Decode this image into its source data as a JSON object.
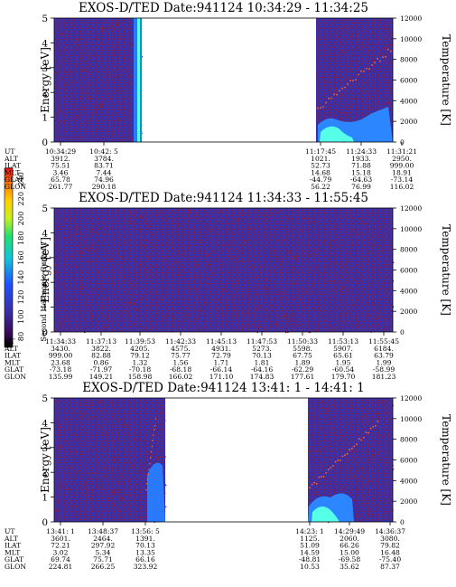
{
  "colors": {
    "background": "#3b2fa6",
    "noise": "#8a1e3a",
    "trace": "#f06a3a",
    "cyan": "#55ffe8",
    "blue": "#2a7aff"
  },
  "colorbar": {
    "label": "Second Harmonic Current",
    "ticks": [
      "240",
      "220",
      "200",
      "180",
      "160",
      "140",
      "120",
      "100",
      "80"
    ]
  },
  "chart_data": [
    {
      "type": "heatmap",
      "title": "EXOS-D/TED   Date:941124  10:34:29 - 11:34:25",
      "ylabel": "Energy [eV]",
      "ylabel_right": "Temperature [K]",
      "ylim": [
        0,
        5
      ],
      "ylim_right": [
        0,
        12000
      ],
      "yticks": [
        "0",
        "1",
        "2",
        "3",
        "4",
        "5"
      ],
      "yticks_right": [
        "0",
        "2000",
        "4000",
        "6000",
        "8000",
        "10000",
        "12000"
      ],
      "row_labels": [
        "UT",
        "ALT",
        "ILAT",
        "MLT",
        "GLAT",
        "GLON"
      ],
      "columns": [
        [
          "10:34:29",
          "3912.",
          "75.51",
          "3.46",
          "65.78",
          "261.77"
        ],
        [
          "10:42: 5",
          "3784.",
          "83.71",
          "7.44",
          "74.96",
          "290.18"
        ],
        [
          "11:17:45",
          "1021.",
          "52.73",
          "14.68",
          "-44.79",
          "56.22"
        ],
        [
          "11:24:33",
          "1933.",
          "71.88",
          "15.18",
          "-64.63",
          "76.99"
        ],
        [
          "11:31:21",
          "2950.",
          "999.00",
          "18.91",
          "-73.14",
          "116.02"
        ]
      ]
    },
    {
      "type": "heatmap",
      "title": "EXOS-D/TED   Date:941124  11:34:33 - 11:55:45",
      "ylabel": "Energy [eV]",
      "ylabel_right": "Temperature [K]",
      "ylim": [
        0,
        5
      ],
      "ylim_right": [
        0,
        12000
      ],
      "yticks": [
        "0",
        "1",
        "2",
        "3",
        "4",
        "5"
      ],
      "yticks_right": [
        "0",
        "2000",
        "4000",
        "6000",
        "8000",
        "10000",
        "12000"
      ],
      "row_labels": [
        "UT",
        "ALT",
        "ILAT",
        "MLT",
        "GLAT",
        "GLON"
      ],
      "columns": [
        [
          "11:34:33",
          "3430.",
          "999.00",
          "23.68",
          "-73.18",
          "135.99"
        ],
        [
          "11:37:13",
          "3822.",
          "82.88",
          "0.86",
          "-71.97",
          "149.21"
        ],
        [
          "11:39:53",
          "4205.",
          "79.12",
          "1.32",
          "-70.18",
          "158.98"
        ],
        [
          "11:42:33",
          "4575.",
          "75.77",
          "1.56",
          "-68.18",
          "166.02"
        ],
        [
          "11:45:13",
          "4931.",
          "72.79",
          "1.71",
          "-66.14",
          "171.10"
        ],
        [
          "11:47:53",
          "5273.",
          "70.13",
          "1.81",
          "-64.16",
          "174.83"
        ],
        [
          "11:50:33",
          "5598.",
          "67.75",
          "1.89",
          "-62.29",
          "177.61"
        ],
        [
          "11:53:13",
          "5907.",
          "65.61",
          "1.95",
          "-60.54",
          "179.70"
        ],
        [
          "11:55:45",
          "6184.",
          "63.79",
          "1.99",
          "-58.99",
          "181.23"
        ]
      ]
    },
    {
      "type": "heatmap",
      "title": "EXOS-D/TED   Date:941124  13:41: 1 - 14:41: 1",
      "ylabel": "Energy [eV]",
      "ylabel_right": "Temperature [K]",
      "ylim": [
        0,
        5
      ],
      "ylim_right": [
        0,
        12000
      ],
      "yticks": [
        "0",
        "1",
        "2",
        "3",
        "4",
        "5"
      ],
      "yticks_right": [
        "0",
        "2000",
        "4000",
        "6000",
        "8000",
        "10000",
        "12000"
      ],
      "row_labels": [
        "UT",
        "ALT",
        "ILAT",
        "MLT",
        "GLAT",
        "GLON"
      ],
      "columns": [
        [
          "13:41: 1",
          "3601.",
          "72.21",
          "3.02",
          "69.74",
          "224.81"
        ],
        [
          "13:48:37",
          "2464.",
          "297.92",
          "5.34",
          "75.71",
          "266.25"
        ],
        [
          "13:56: 5",
          "1391.",
          "70.13",
          "13.35",
          "66.16",
          "323.92"
        ],
        [
          "14:23: 1",
          "1125.",
          "51.09",
          "14.59",
          "-48.81",
          "10.53"
        ],
        [
          "14:29:49",
          "2060.",
          "66.26",
          "15.00",
          "-69.58",
          "35.62"
        ],
        [
          "14:36:37",
          "3080.",
          "79.82",
          "16.48",
          "-75.40",
          "87.37"
        ]
      ]
    }
  ]
}
